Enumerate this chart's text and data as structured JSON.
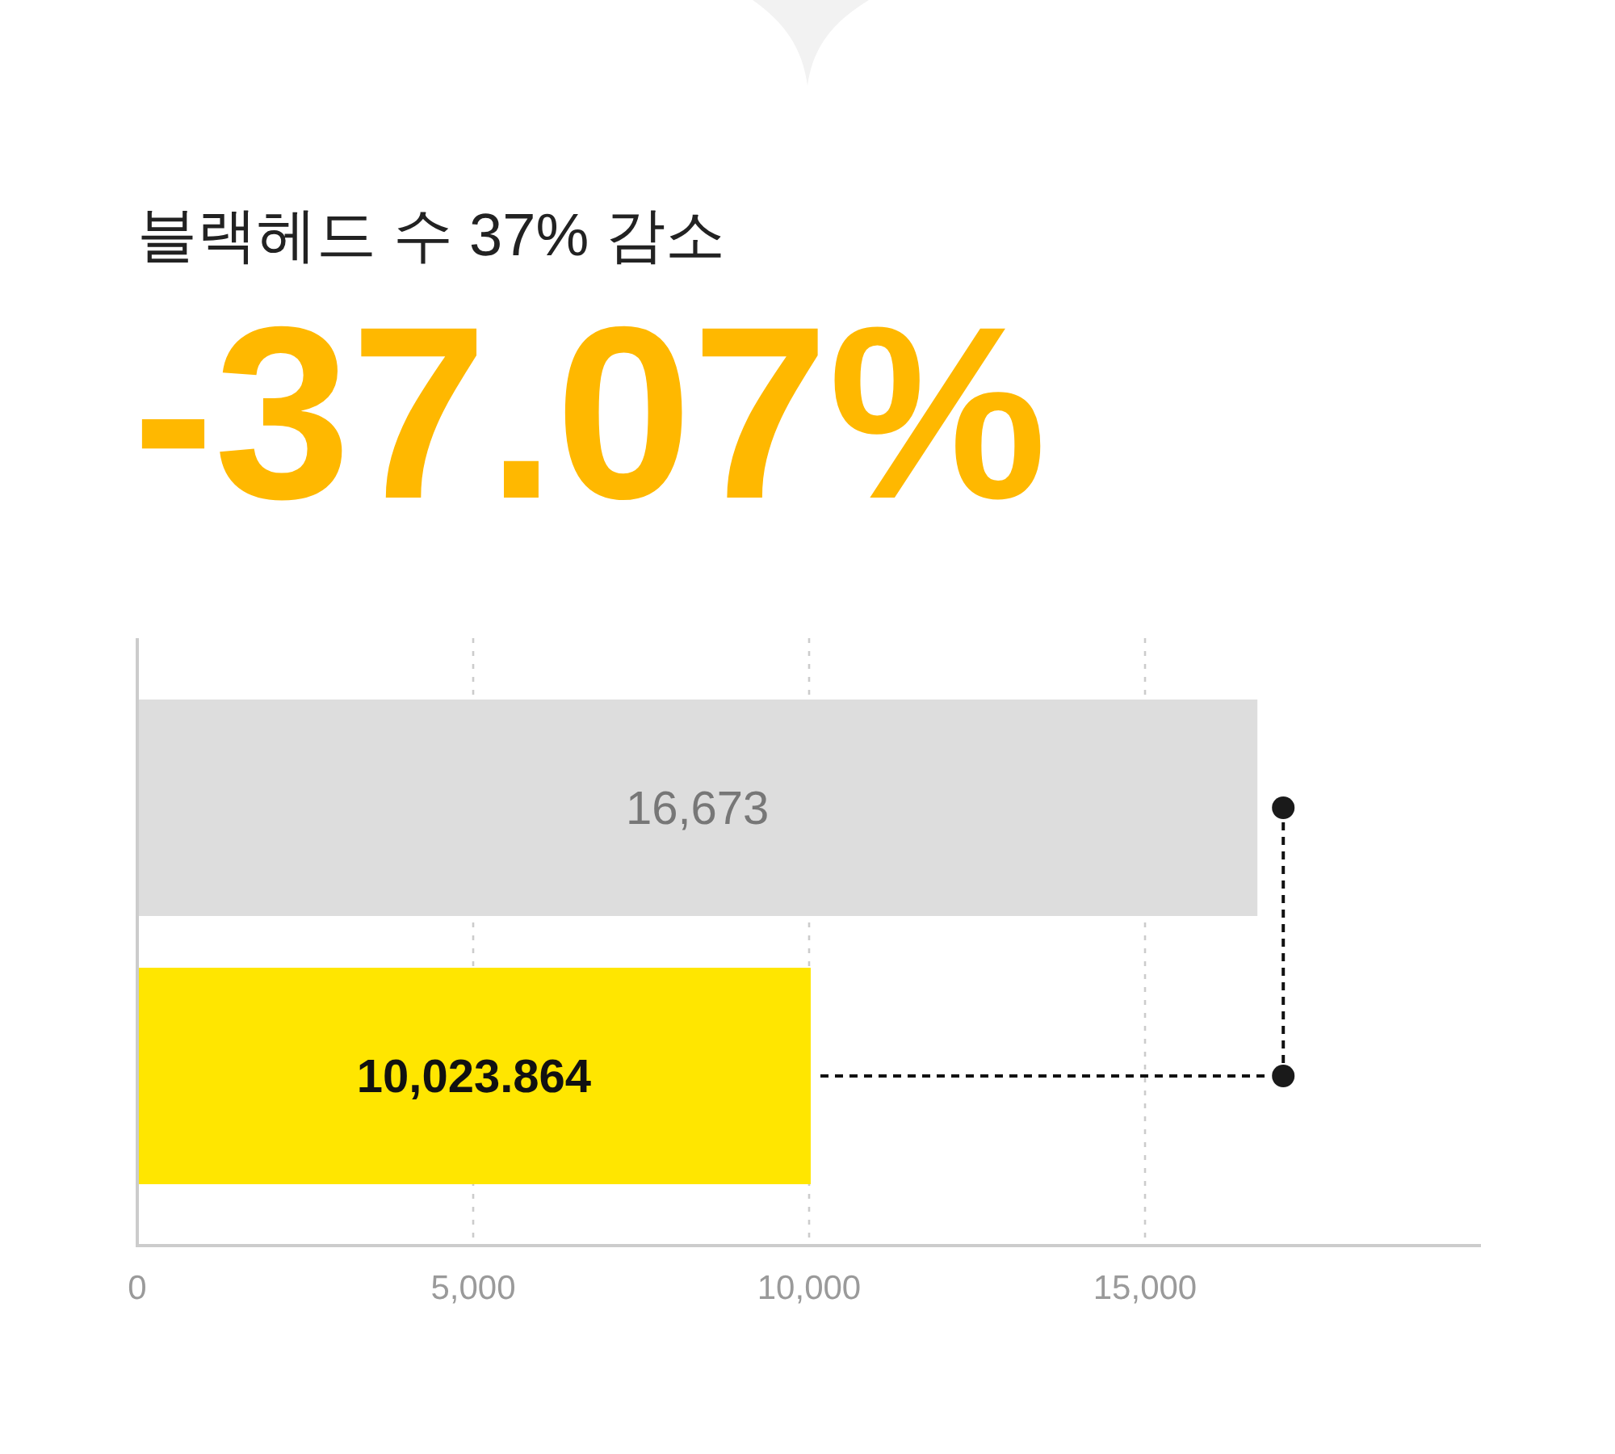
{
  "chart_data": {
    "type": "bar",
    "orientation": "horizontal",
    "title": "블랙헤드 수 37% 감소",
    "subtitle": "-37.07%",
    "categories": [
      null,
      null
    ],
    "values": [
      16673,
      10023.864
    ],
    "colors": [
      "#dddddd",
      "#ffe600"
    ],
    "value_labels": [
      "16,673",
      "10,023.864"
    ],
    "xlim": [
      0,
      20000
    ],
    "xticks": [
      0,
      {
        "value": 5000,
        "label": "5,000"
      },
      {
        "value": 10000,
        "label": "10,000"
      },
      {
        "value": 15000,
        "label": "15,000"
      }
    ],
    "grid": "x"
  }
}
